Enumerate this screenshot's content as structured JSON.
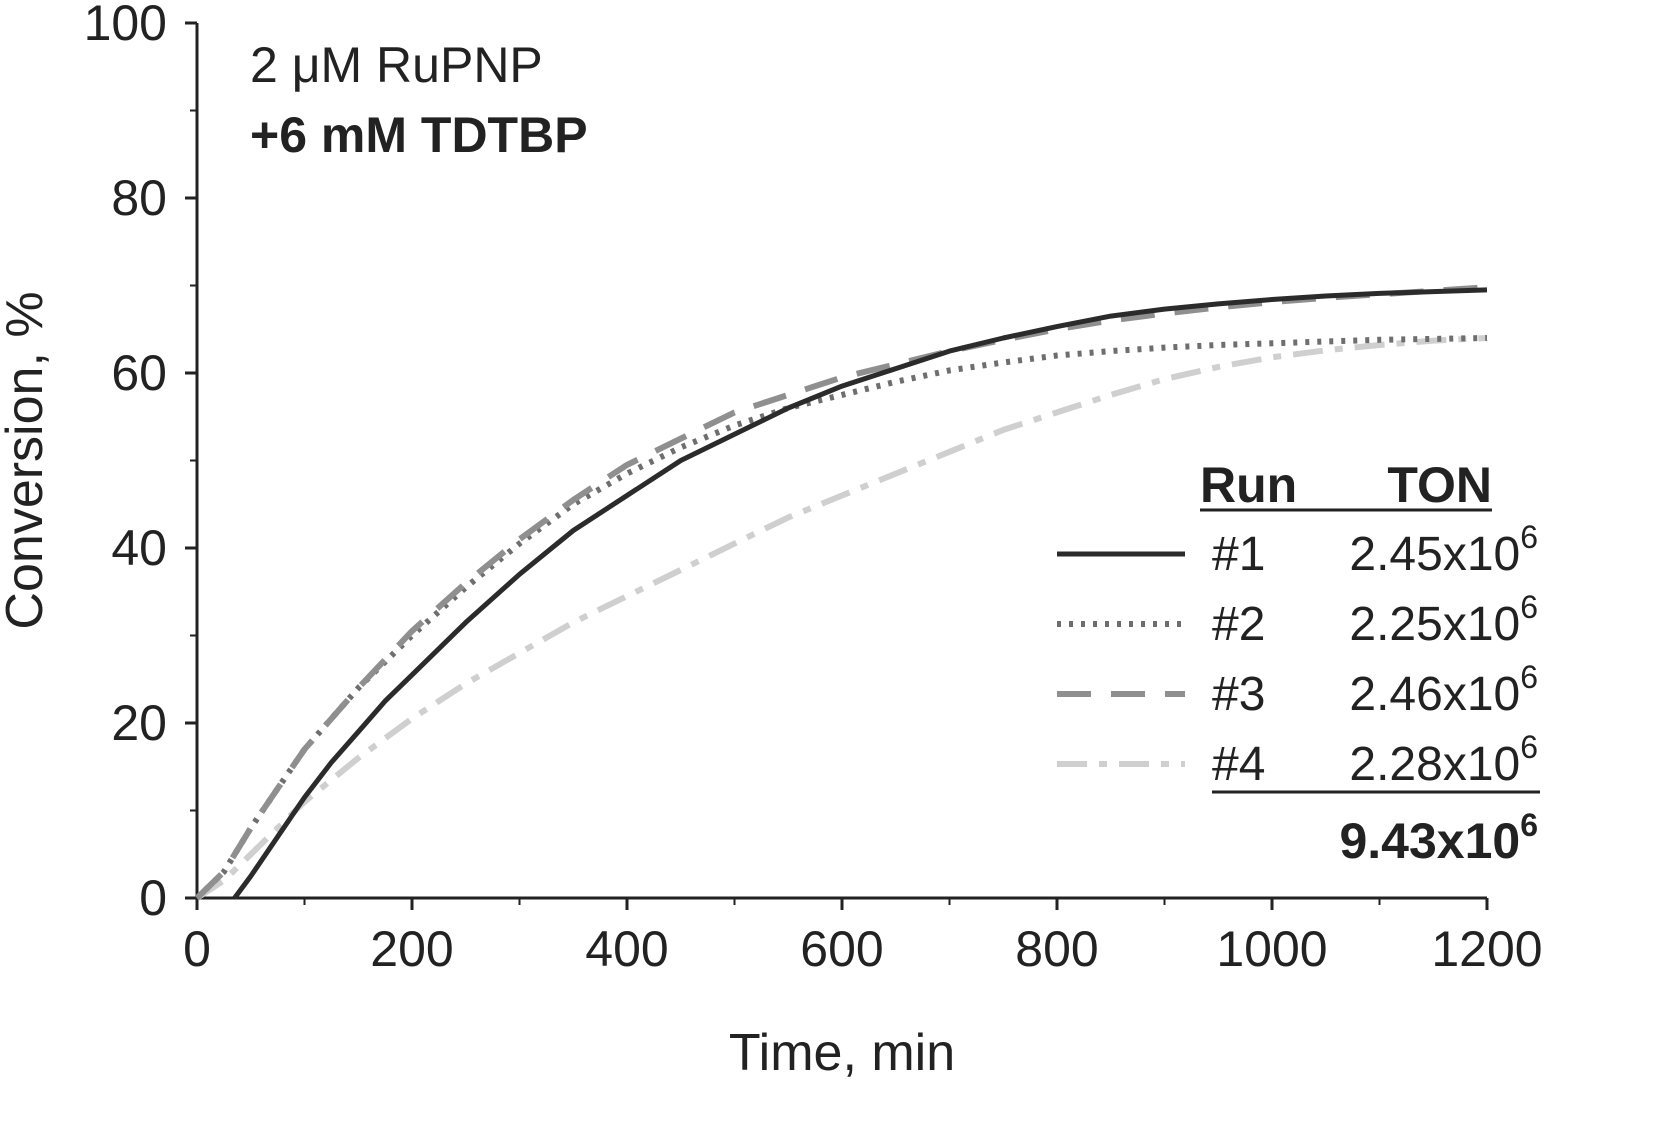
{
  "chart_data": {
    "type": "line",
    "xlabel": "Time, min",
    "ylabel": "Conversion, %",
    "xlim": [
      0,
      1200
    ],
    "ylim": [
      0,
      100
    ],
    "x_ticks": [
      0,
      200,
      400,
      600,
      800,
      1000,
      1200
    ],
    "y_ticks": [
      0,
      20,
      40,
      60,
      80,
      100
    ],
    "grid": false,
    "annotations": [
      "2 μM RuPNP",
      "+6 mM TDTBP"
    ],
    "legend": {
      "placement": "right",
      "header_run": "Run",
      "header_ton": "TON",
      "total_label": "9.43x10",
      "total_exponent": "6"
    },
    "series": [
      {
        "name": "#1",
        "ton": "2.45x10",
        "ton_exponent": "6",
        "color": "#2b2b2b",
        "style": "solid",
        "x": [
          35,
          50,
          75,
          100,
          125,
          150,
          175,
          200,
          250,
          300,
          350,
          400,
          450,
          500,
          550,
          600,
          650,
          700,
          750,
          800,
          850,
          900,
          950,
          1000,
          1050,
          1100,
          1150,
          1200
        ],
        "y": [
          0,
          2.5,
          7,
          11.5,
          15.5,
          19,
          22.5,
          25.5,
          31.5,
          37,
          42,
          46,
          50,
          53,
          56,
          58.5,
          60.5,
          62.5,
          64,
          65.3,
          66.5,
          67.3,
          67.9,
          68.4,
          68.8,
          69.1,
          69.3,
          69.5
        ]
      },
      {
        "name": "#2",
        "ton": "2.25x10",
        "ton_exponent": "6",
        "color": "#6e6e6e",
        "style": "dotted",
        "x": [
          0,
          25,
          50,
          75,
          100,
          150,
          200,
          250,
          300,
          350,
          400,
          450,
          500,
          550,
          600,
          650,
          700,
          750,
          800,
          850,
          900,
          950,
          1000,
          1050,
          1100,
          1150,
          1200
        ],
        "y": [
          0,
          3,
          8,
          12.5,
          17,
          24,
          30,
          35.5,
          40.5,
          45,
          48.5,
          51.5,
          54,
          56,
          57.5,
          59,
          60.3,
          61.2,
          62,
          62.5,
          62.9,
          63.2,
          63.4,
          63.6,
          63.8,
          63.9,
          64
        ]
      },
      {
        "name": "#3",
        "ton": "2.46x10",
        "ton_exponent": "6",
        "color": "#8f8f8f",
        "style": "dashed",
        "x": [
          0,
          25,
          50,
          75,
          100,
          150,
          200,
          250,
          300,
          350,
          400,
          450,
          500,
          550,
          600,
          650,
          700,
          750,
          800,
          850,
          900,
          950,
          1000,
          1050,
          1100,
          1150,
          1200
        ],
        "y": [
          0,
          3,
          8,
          12.5,
          17,
          24,
          30.5,
          36,
          41,
          45.5,
          49.5,
          52.5,
          55.5,
          57.5,
          59.5,
          61,
          62.5,
          63.8,
          65,
          66,
          66.8,
          67.5,
          68.1,
          68.6,
          69,
          69.4,
          69.8
        ]
      },
      {
        "name": "#4",
        "ton": "2.28x10",
        "ton_exponent": "6",
        "color": "#cfcfcf",
        "style": "dashdot",
        "x": [
          0,
          25,
          50,
          75,
          100,
          150,
          200,
          250,
          300,
          350,
          400,
          450,
          500,
          550,
          600,
          650,
          700,
          750,
          800,
          850,
          900,
          950,
          1000,
          1050,
          1100,
          1150,
          1200
        ],
        "y": [
          0,
          2,
          5,
          8,
          11,
          16,
          20.5,
          24.5,
          28,
          31.5,
          34.5,
          37.5,
          40.5,
          43.5,
          46,
          48.5,
          51,
          53.5,
          55.5,
          57.5,
          59.3,
          60.7,
          61.8,
          62.6,
          63.2,
          63.7,
          64
        ]
      }
    ]
  }
}
